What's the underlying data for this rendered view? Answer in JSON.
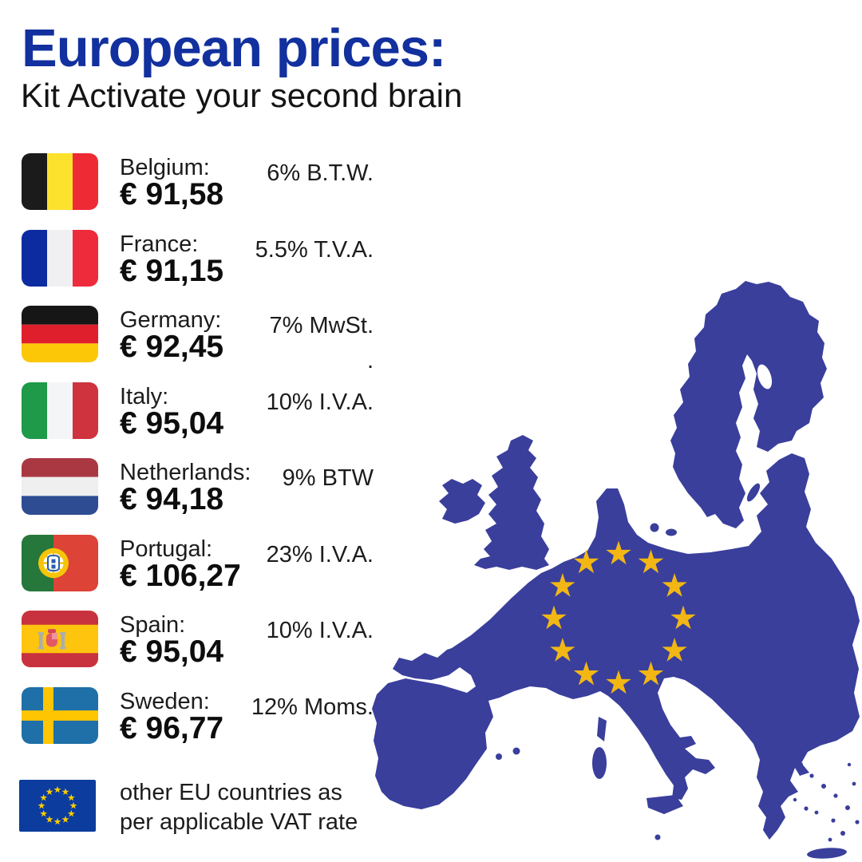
{
  "header": {
    "title": "European prices:",
    "subtitle": "Kit Activate your second brain"
  },
  "price_list": {
    "rows": [
      {
        "country": "Belgium:",
        "price": "€ 91,58",
        "vat": "6% B.T.W.",
        "flag": "be"
      },
      {
        "country": "France:",
        "price": "€ 91,15",
        "vat": "5.5% T.V.A.",
        "flag": "fr"
      },
      {
        "country": "Germany:",
        "price": "€ 92,45",
        "vat": "7% MwSt.",
        "vat_line2": ".",
        "flag": "de"
      },
      {
        "country": "Italy:",
        "price": "€ 95,04",
        "vat": "10% I.V.A.",
        "flag": "it"
      },
      {
        "country": "Netherlands:",
        "price": "€ 94,18",
        "vat": "9% BTW",
        "flag": "nl"
      },
      {
        "country": "Portugal:",
        "price": "€ 106,27",
        "vat": "23% I.V.A.",
        "flag": "pt"
      },
      {
        "country": "Spain:",
        "price": "€ 95,04",
        "vat": "10% I.V.A.",
        "flag": "es"
      },
      {
        "country": "Sweden:",
        "price": "€ 96,77",
        "vat": "12% Moms.",
        "flag": "se"
      }
    ],
    "footer": {
      "flag": "eu",
      "line1": "other EU countries as",
      "line2": "per applicable VAT rate"
    }
  },
  "map": {
    "description": "Silhouette map of the European Union with a circle of 12 gold stars",
    "star_count": 12
  },
  "colors": {
    "title_blue": "#12309E",
    "map_blue": "#3A3F9C",
    "star_gold": "#F2B714",
    "eu_flag_blue": "#0B3C9E",
    "eu_flag_star": "#FFCC00",
    "text_dark": "#1c1c1c"
  }
}
